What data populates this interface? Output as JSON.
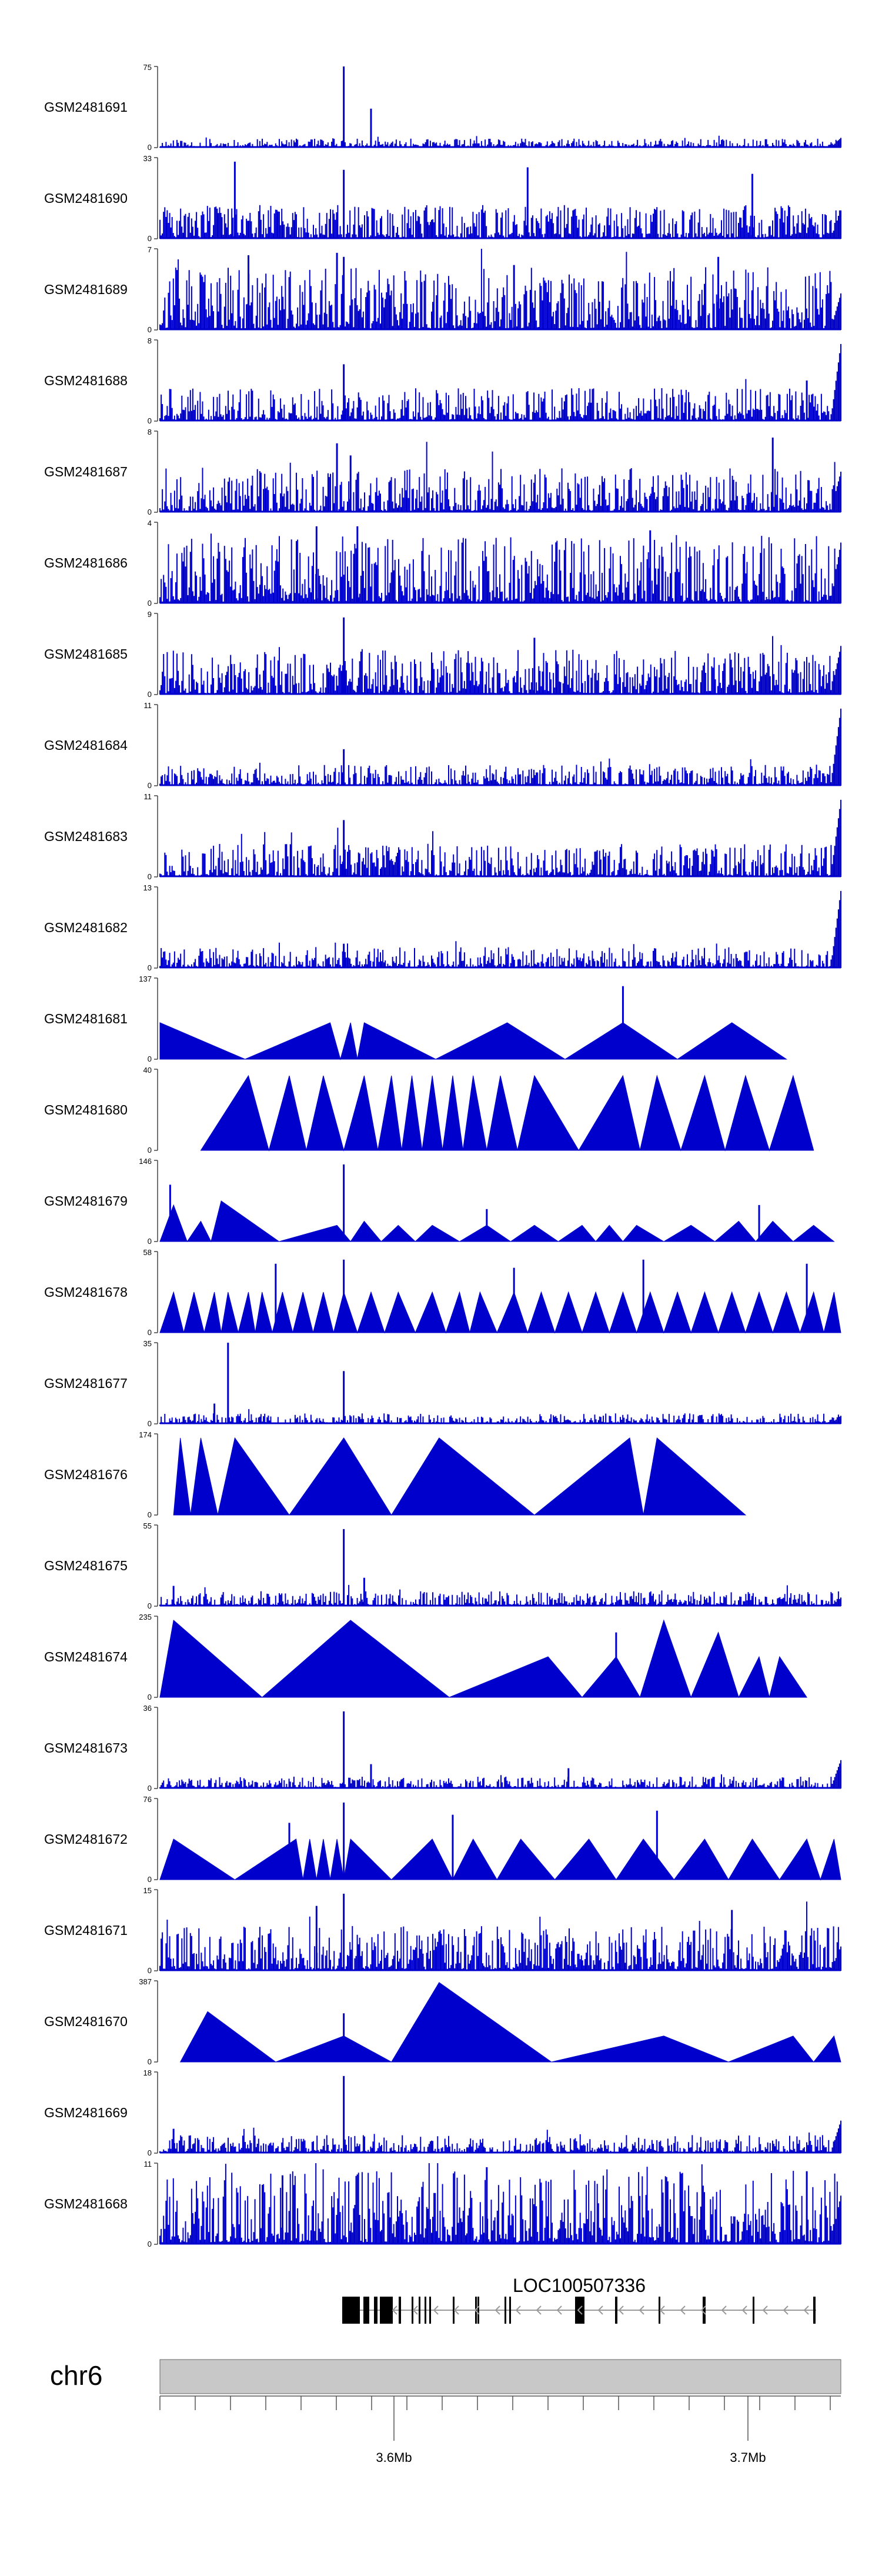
{
  "chart_data": {
    "type": "area",
    "title": "",
    "track_color": "#0000cc",
    "tracks": [
      {
        "name": "GSM2481691",
        "ymax": 75,
        "style": "dense",
        "base": 0.06,
        "spikes": [
          [
            0.27,
            1.0
          ],
          [
            0.31,
            0.48
          ]
        ],
        "edge": 0.12,
        "seed": 11
      },
      {
        "name": "GSM2481690",
        "ymax": 33,
        "style": "sparse",
        "base": 0.32,
        "spikes": [
          [
            0.11,
            0.95
          ],
          [
            0.27,
            0.85
          ],
          [
            0.54,
            0.88
          ],
          [
            0.87,
            0.8
          ]
        ],
        "edge": 0.35,
        "seed": 23
      },
      {
        "name": "GSM2481689",
        "ymax": 7,
        "style": "dense",
        "base": 0.42,
        "spikes": [
          [
            0.26,
            0.95
          ],
          [
            0.27,
            0.9
          ],
          [
            0.13,
            0.92
          ],
          [
            0.52,
            0.8
          ],
          [
            0.82,
            0.9
          ]
        ],
        "edge": 0.45,
        "seed": 37
      },
      {
        "name": "GSM2481688",
        "ymax": 8,
        "style": "dense",
        "base": 0.22,
        "spikes": [
          [
            0.27,
            0.7
          ],
          [
            0.95,
            0.5
          ]
        ],
        "edge": 0.95,
        "seed": 41
      },
      {
        "name": "GSM2481687",
        "ymax": 8,
        "style": "dense",
        "base": 0.3,
        "spikes": [
          [
            0.26,
            0.85
          ],
          [
            0.28,
            0.7
          ],
          [
            0.9,
            0.92
          ]
        ],
        "edge": 0.5,
        "seed": 53
      },
      {
        "name": "GSM2481686",
        "ymax": 4,
        "style": "dense",
        "base": 0.45,
        "spikes": [
          [
            0.23,
            0.95
          ],
          [
            0.29,
            0.95
          ],
          [
            0.72,
            0.9
          ]
        ],
        "edge": 0.75,
        "seed": 61
      },
      {
        "name": "GSM2481685",
        "ymax": 9,
        "style": "dense",
        "base": 0.3,
        "spikes": [
          [
            0.27,
            0.95
          ],
          [
            0.55,
            0.7
          ]
        ],
        "edge": 0.6,
        "seed": 71
      },
      {
        "name": "GSM2481684",
        "ymax": 11,
        "style": "dense",
        "base": 0.14,
        "spikes": [
          [
            0.27,
            0.45
          ]
        ],
        "edge": 0.95,
        "seed": 83
      },
      {
        "name": "GSM2481683",
        "ymax": 11,
        "style": "dense",
        "base": 0.22,
        "spikes": [
          [
            0.27,
            0.7
          ]
        ],
        "edge": 0.95,
        "seed": 97
      },
      {
        "name": "GSM2481682",
        "ymax": 13,
        "style": "dense",
        "base": 0.14,
        "spikes": [
          [
            0.27,
            0.3
          ]
        ],
        "edge": 0.95,
        "seed": 101
      },
      {
        "name": "GSM2481681",
        "ymax": 137,
        "style": "tri",
        "peaks": [
          [
            0.0,
            0.45
          ],
          [
            0.25,
            0.45
          ],
          [
            0.28,
            0.45
          ],
          [
            0.3,
            0.45
          ],
          [
            0.51,
            0.45
          ],
          [
            0.68,
            0.45
          ],
          [
            0.84,
            0.45
          ]
        ],
        "spikes": [
          [
            0.68,
            0.9
          ]
        ],
        "range": [
          0.0,
          0.92
        ],
        "seed": 7
      },
      {
        "name": "GSM2481680",
        "ymax": 40,
        "style": "tri",
        "peaks": [
          [
            0.13,
            0.92
          ],
          [
            0.19,
            0.92
          ],
          [
            0.24,
            0.92
          ],
          [
            0.3,
            0.92
          ],
          [
            0.34,
            0.92
          ],
          [
            0.37,
            0.92
          ],
          [
            0.4,
            0.92
          ],
          [
            0.43,
            0.92
          ],
          [
            0.46,
            0.92
          ],
          [
            0.5,
            0.92
          ],
          [
            0.55,
            0.92
          ],
          [
            0.68,
            0.92
          ],
          [
            0.73,
            0.92
          ],
          [
            0.8,
            0.92
          ],
          [
            0.86,
            0.92
          ],
          [
            0.93,
            0.92
          ]
        ],
        "spikes": [],
        "range": [
          0.06,
          0.96
        ],
        "seed": 8
      },
      {
        "name": "GSM2481679",
        "ymax": 146,
        "style": "tri",
        "peaks": [
          [
            0.02,
            0.45
          ],
          [
            0.06,
            0.25
          ],
          [
            0.09,
            0.5
          ],
          [
            0.26,
            0.2
          ],
          [
            0.3,
            0.25
          ],
          [
            0.35,
            0.2
          ],
          [
            0.4,
            0.2
          ],
          [
            0.48,
            0.2
          ],
          [
            0.55,
            0.2
          ],
          [
            0.62,
            0.2
          ],
          [
            0.66,
            0.2
          ],
          [
            0.7,
            0.2
          ],
          [
            0.78,
            0.2
          ],
          [
            0.85,
            0.25
          ],
          [
            0.9,
            0.25
          ],
          [
            0.96,
            0.2
          ]
        ],
        "spikes": [
          [
            0.27,
            0.95
          ],
          [
            0.015,
            0.7
          ],
          [
            0.48,
            0.4
          ],
          [
            0.88,
            0.45
          ]
        ],
        "range": [
          0.0,
          0.99
        ],
        "seed": 9
      },
      {
        "name": "GSM2481678",
        "ymax": 58,
        "style": "tri",
        "peaks": [
          [
            0.02,
            0.5
          ],
          [
            0.05,
            0.5
          ],
          [
            0.08,
            0.5
          ],
          [
            0.1,
            0.5
          ],
          [
            0.13,
            0.5
          ],
          [
            0.15,
            0.5
          ],
          [
            0.18,
            0.5
          ],
          [
            0.21,
            0.5
          ],
          [
            0.24,
            0.5
          ],
          [
            0.27,
            0.5
          ],
          [
            0.31,
            0.5
          ],
          [
            0.35,
            0.5
          ],
          [
            0.4,
            0.5
          ],
          [
            0.44,
            0.5
          ],
          [
            0.47,
            0.5
          ],
          [
            0.52,
            0.5
          ],
          [
            0.56,
            0.5
          ],
          [
            0.6,
            0.5
          ],
          [
            0.64,
            0.5
          ],
          [
            0.68,
            0.5
          ],
          [
            0.72,
            0.5
          ],
          [
            0.76,
            0.5
          ],
          [
            0.8,
            0.5
          ],
          [
            0.84,
            0.5
          ],
          [
            0.88,
            0.5
          ],
          [
            0.92,
            0.5
          ],
          [
            0.96,
            0.5
          ],
          [
            0.99,
            0.5
          ]
        ],
        "spikes": [
          [
            0.17,
            0.85
          ],
          [
            0.27,
            0.9
          ],
          [
            0.52,
            0.8
          ],
          [
            0.71,
            0.9
          ],
          [
            0.95,
            0.85
          ]
        ],
        "range": [
          0.0,
          1.0
        ],
        "seed": 10
      },
      {
        "name": "GSM2481677",
        "ymax": 35,
        "style": "dense",
        "base": 0.07,
        "spikes": [
          [
            0.1,
            1.0
          ],
          [
            0.27,
            0.65
          ],
          [
            0.08,
            0.25
          ]
        ],
        "edge": 0.1,
        "seed": 111
      },
      {
        "name": "GSM2481676",
        "ymax": 174,
        "style": "tri",
        "peaks": [
          [
            0.03,
            0.95
          ],
          [
            0.06,
            0.95
          ],
          [
            0.11,
            0.95
          ],
          [
            0.27,
            0.95
          ],
          [
            0.41,
            0.95
          ],
          [
            0.69,
            0.95
          ],
          [
            0.73,
            0.95
          ]
        ],
        "spikes": [],
        "range": [
          0.02,
          0.86
        ],
        "seed": 12
      },
      {
        "name": "GSM2481675",
        "ymax": 55,
        "style": "dense",
        "base": 0.1,
        "spikes": [
          [
            0.27,
            0.95
          ],
          [
            0.3,
            0.35
          ],
          [
            0.02,
            0.25
          ]
        ],
        "edge": 0.1,
        "seed": 127
      },
      {
        "name": "GSM2481674",
        "ymax": 235,
        "style": "tri",
        "peaks": [
          [
            0.02,
            0.95
          ],
          [
            0.28,
            0.95
          ],
          [
            0.57,
            0.5
          ],
          [
            0.67,
            0.5
          ],
          [
            0.74,
            0.95
          ],
          [
            0.82,
            0.8
          ],
          [
            0.88,
            0.5
          ],
          [
            0.91,
            0.5
          ]
        ],
        "spikes": [
          [
            0.67,
            0.8
          ]
        ],
        "range": [
          0.0,
          0.95
        ],
        "seed": 13
      },
      {
        "name": "GSM2481673",
        "ymax": 36,
        "style": "dense",
        "base": 0.08,
        "spikes": [
          [
            0.27,
            0.95
          ],
          [
            0.31,
            0.3
          ],
          [
            0.6,
            0.25
          ]
        ],
        "edge": 0.35,
        "seed": 131
      },
      {
        "name": "GSM2481672",
        "ymax": 76,
        "style": "tri",
        "peaks": [
          [
            0.02,
            0.5
          ],
          [
            0.2,
            0.5
          ],
          [
            0.22,
            0.5
          ],
          [
            0.24,
            0.5
          ],
          [
            0.26,
            0.5
          ],
          [
            0.28,
            0.5
          ],
          [
            0.4,
            0.5
          ],
          [
            0.46,
            0.5
          ],
          [
            0.53,
            0.5
          ],
          [
            0.63,
            0.5
          ],
          [
            0.71,
            0.5
          ],
          [
            0.8,
            0.5
          ],
          [
            0.87,
            0.5
          ],
          [
            0.95,
            0.5
          ],
          [
            0.99,
            0.5
          ]
        ],
        "spikes": [
          [
            0.27,
            0.95
          ],
          [
            0.43,
            0.8
          ],
          [
            0.73,
            0.85
          ],
          [
            0.19,
            0.7
          ]
        ],
        "range": [
          0.0,
          1.0
        ],
        "seed": 14
      },
      {
        "name": "GSM2481671",
        "ymax": 15,
        "style": "dense",
        "base": 0.3,
        "spikes": [
          [
            0.27,
            0.95
          ],
          [
            0.23,
            0.8
          ],
          [
            0.84,
            0.75
          ]
        ],
        "edge": 0.3,
        "seed": 149
      },
      {
        "name": "GSM2481670",
        "ymax": 387,
        "style": "tri",
        "peaks": [
          [
            0.07,
            0.62
          ],
          [
            0.27,
            0.32
          ],
          [
            0.41,
            0.98
          ],
          [
            0.74,
            0.32
          ],
          [
            0.93,
            0.32
          ],
          [
            0.99,
            0.32
          ]
        ],
        "spikes": [
          [
            0.27,
            0.6
          ]
        ],
        "range": [
          0.03,
          1.0
        ],
        "seed": 15
      },
      {
        "name": "GSM2481669",
        "ymax": 18,
        "style": "dense",
        "base": 0.12,
        "spikes": [
          [
            0.27,
            0.95
          ],
          [
            0.02,
            0.3
          ]
        ],
        "edge": 0.4,
        "seed": 151
      },
      {
        "name": "GSM2481668",
        "ymax": 11,
        "style": "dense",
        "base": 0.5,
        "spikes": [
          [
            0.48,
            0.95
          ],
          [
            0.95,
            0.9
          ],
          [
            0.18,
            0.85
          ]
        ],
        "edge": 0.6,
        "seed": 163
      }
    ],
    "gene": {
      "label": "LOC100507336",
      "strand": "-"
    },
    "chromosome": {
      "label": "chr6",
      "band_color": "#c8c8c8"
    },
    "axis": {
      "ticks": [
        {
          "label": "3.6Mb"
        },
        {
          "label": "3.7Mb"
        }
      ]
    }
  }
}
